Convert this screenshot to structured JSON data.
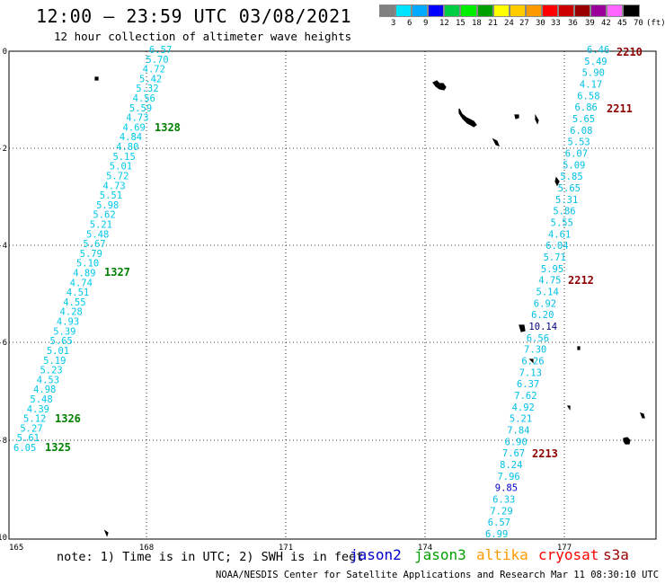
{
  "header": {
    "title": "12:00 — 23:59 UTC 03/08/2021",
    "subtitle": "12 hour collection of altimeter wave heights"
  },
  "color_scale": {
    "colors": [
      "#808080",
      "#00e5ff",
      "#00aaff",
      "#0000ff",
      "#00cc44",
      "#00ee00",
      "#00a000",
      "#ffff00",
      "#ffcc00",
      "#ff9900",
      "#ff0000",
      "#cc0000",
      "#990000",
      "#990099",
      "#ff66ff",
      "#000000"
    ],
    "labels": [
      "3",
      "6",
      "9",
      "12",
      "15",
      "18",
      "21",
      "24",
      "27",
      "30",
      "33",
      "36",
      "39",
      "42",
      "45",
      "70",
      "(ft)"
    ]
  },
  "map": {
    "y_labels": [
      "0",
      "-2",
      "-4",
      "-6",
      "-8",
      "-10"
    ],
    "x_labels": [
      "165",
      "168",
      "171",
      "174",
      "177"
    ],
    "track_times": [
      {
        "text": "1328",
        "color": "#008000"
      },
      {
        "text": "1327",
        "color": "#008000"
      },
      {
        "text": "1326",
        "color": "#008000"
      },
      {
        "text": "1325",
        "color": "#008000"
      },
      {
        "text": "2210",
        "color": "#8b0000"
      },
      {
        "text": "2211",
        "color": "#8b0000"
      },
      {
        "text": "2212",
        "color": "#8b0000"
      },
      {
        "text": "2213",
        "color": "#8b0000"
      }
    ],
    "west_track_values": [
      "6.57",
      "5.70",
      "4.72",
      "5.42",
      "5.32",
      "4.56",
      "5.59",
      "4.73",
      "4.69",
      "4.84",
      "4.80",
      "5.15",
      "5.01",
      "5.72",
      "4.73",
      "5.51",
      "5.98",
      "5.62",
      "5.21",
      "5.48",
      "5.67",
      "5.79",
      "5.10",
      "4.89",
      "4.74",
      "4.51",
      "4.55",
      "4.28",
      "4.93",
      "5.39",
      "5.65",
      "5.01",
      "5.19",
      "5.23",
      "4.53",
      "4.98",
      "5.48",
      "4.39",
      "5.12",
      "5.27",
      "5.61",
      "6.05"
    ],
    "east_track_values": [
      "6.46",
      "5.49",
      "5.90",
      "4.17",
      "6.58",
      "6.86",
      "5.65",
      "6.08",
      "5.53",
      "6.07",
      "5.09",
      "5.85",
      "5.65",
      "5.31",
      "5.86",
      "5.55",
      "4.61",
      "6.04",
      "5.71",
      "5.95",
      "4.75",
      "5.14",
      "6.92",
      "6.20",
      "10.14",
      "6.56",
      "7.30",
      "6.26",
      "7.13",
      "6.37",
      "7.62",
      "4.92",
      "5.21",
      "7.84",
      "6.90",
      "7.67",
      "8.24",
      "7.96",
      "9.85",
      "6.33",
      "7.29",
      "6.57",
      "6.99"
    ],
    "east_track_colors": {
      "default": "#00bfe6",
      "high": "#0000cc",
      "very_high": "#000080"
    }
  },
  "footer": {
    "note": "note: 1) Time is in UTC; 2) SWH is in feet",
    "satellites": [
      {
        "name": "jason2",
        "color": "#0000cc"
      },
      {
        "name": "jason3",
        "color": "#00a000"
      },
      {
        "name": "altika",
        "color": "#ff9900"
      },
      {
        "name": "cryosat",
        "color": "#ff0000"
      },
      {
        "name": "s3a",
        "color": "#990000"
      }
    ],
    "credit": "NOAA/NESDIS Center for Satellite Applications and Research   Mar 11 08:30:10 UTC 2021"
  }
}
